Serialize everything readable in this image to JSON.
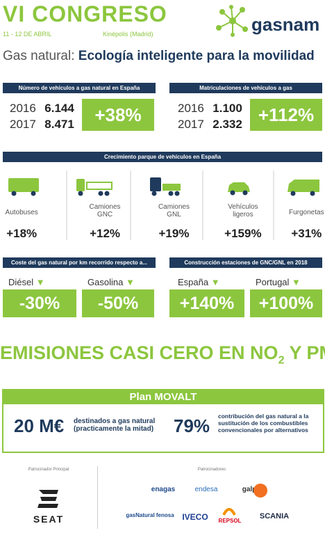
{
  "header": {
    "title": "VI CONGRESO",
    "dates": "11 - 12 DE ABRIL",
    "venue": "Kinépolis (Madrid)",
    "logo": "gasnam"
  },
  "subtitle": {
    "lead": "Gas natural:",
    "text": "Ecología inteligente para la movilidad"
  },
  "vehicles": {
    "title": "Número de vehículos a gas natural en España",
    "rows": [
      [
        "2016",
        "6.144"
      ],
      [
        "2017",
        "8.471"
      ]
    ],
    "change": "+38%"
  },
  "registrations": {
    "title": "Matriculaciones de vehículos a gas",
    "rows": [
      [
        "2016",
        "1.100"
      ],
      [
        "2017",
        "2.332"
      ]
    ],
    "change": "+112%"
  },
  "growth": {
    "title": "Crecimiento parque de vehículos en España",
    "items": [
      {
        "label": "Autobuses",
        "change": "+18%"
      },
      {
        "label": "Camiones GNC",
        "change": "+12%"
      },
      {
        "label": "Camiones GNL",
        "change": "+19%"
      },
      {
        "label": "Vehículos ligeros",
        "change": "+159%"
      },
      {
        "label": "Furgonetas",
        "change": "+31%"
      }
    ]
  },
  "cost": {
    "title": "Coste del gas natural por km recorrido respecto a...",
    "items": [
      {
        "label": "Diésel",
        "change": "-30%"
      },
      {
        "label": "Gasolina",
        "change": "-50%"
      }
    ]
  },
  "stations": {
    "title": "Construcción estaciones de GNC/GNL en 2018",
    "items": [
      {
        "label": "España",
        "change": "+140%"
      },
      {
        "label": "Portugal",
        "change": "+100%"
      }
    ]
  },
  "banner": {
    "text": "EMISIONES CASI CERO EN NO",
    "subscript": "2",
    "tail": "Y PM"
  },
  "plan": {
    "title": "Plan MOVALT",
    "amount": "20 M€",
    "amount_text": "destinados a gas natural (practicamente la mitad)",
    "share": "79%",
    "share_text": "contribución del gas natural a la sustitución de los combustibles convencionales por alternativos"
  },
  "sponsors": {
    "main_label": "Patrocinador Principal",
    "main": "SEAT",
    "label": "Patrocinadores",
    "list": [
      "enagas",
      "endesa",
      "galp",
      "gasNatural fenosa",
      "IVECO",
      "REPSOL",
      "SCANIA"
    ]
  }
}
